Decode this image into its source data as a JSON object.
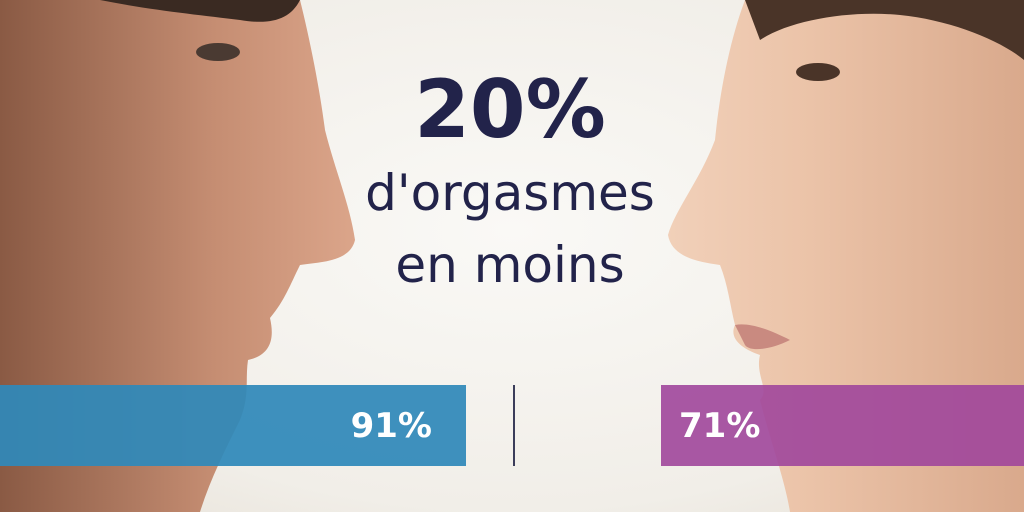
{
  "headline": {
    "stat": "20%",
    "line1": "d'orgasmes",
    "line2": "en moins"
  },
  "bars": [
    {
      "label": "91%",
      "value": 91,
      "color": "#2f89b9"
    },
    {
      "label": "71%",
      "value": 71,
      "color": "#a0469b"
    }
  ],
  "colors": {
    "text": "#22234a",
    "background": "#f3f1ec"
  }
}
